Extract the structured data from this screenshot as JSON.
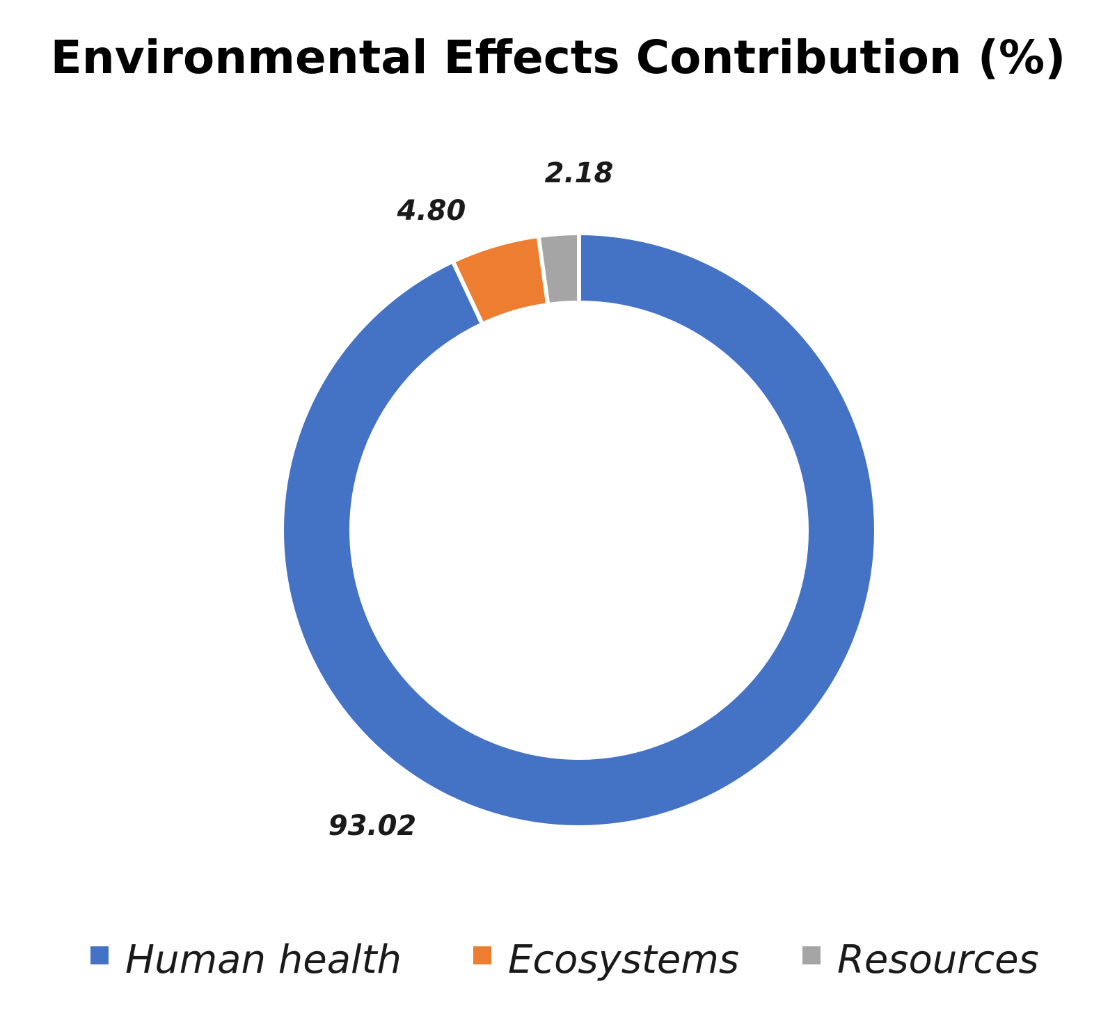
{
  "chart_data": {
    "type": "pie",
    "variant": "donut",
    "title": "Environmental Effects Contribution (%)",
    "categories": [
      "Human health",
      "Ecosystems",
      "Resources"
    ],
    "values": [
      93.02,
      4.8,
      2.18
    ],
    "labels": [
      "93.02",
      "4.80",
      "2.18"
    ],
    "colors": [
      "#4472C4",
      "#ED7D31",
      "#A5A5A5"
    ],
    "legend_position": "bottom",
    "start_angle": "12 o'clock, clockwise"
  }
}
